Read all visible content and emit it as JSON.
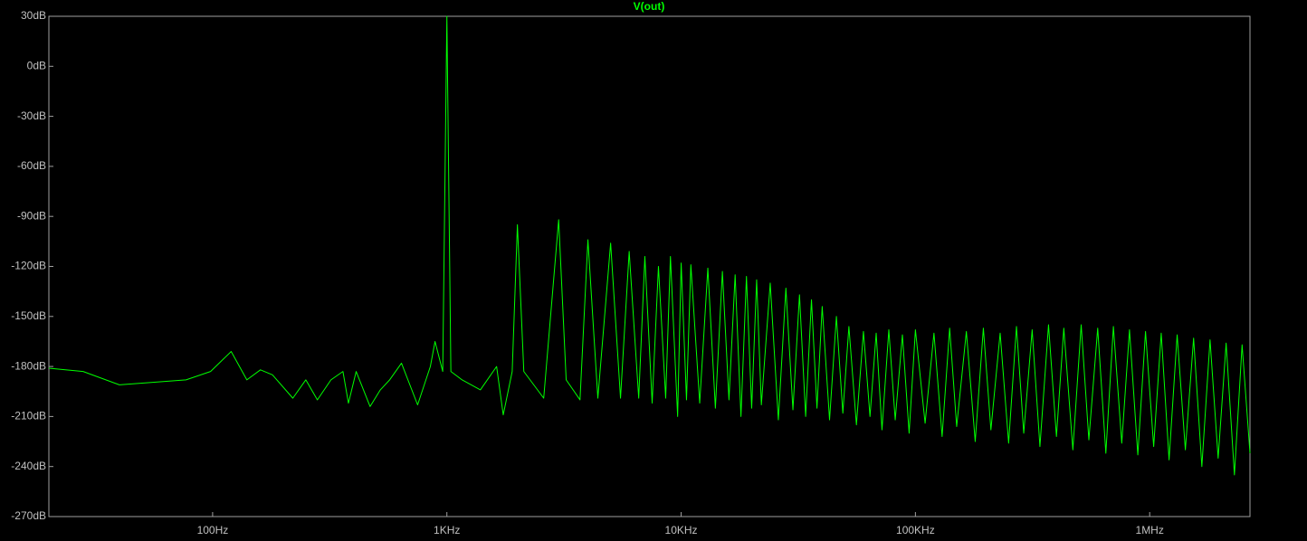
{
  "chart_data": {
    "type": "line",
    "log_x": true,
    "grid": false,
    "xlim": [
      20,
      2680000
    ],
    "ylim": [
      -270,
      30
    ],
    "xticks": [
      {
        "value": 100,
        "label": "100Hz"
      },
      {
        "value": 1000,
        "label": "1KHz"
      },
      {
        "value": 10000,
        "label": "10KHz"
      },
      {
        "value": 100000,
        "label": "100KHz"
      },
      {
        "value": 1000000,
        "label": "1MHz"
      }
    ],
    "yticks": [
      {
        "value": 30,
        "label": "30dB"
      },
      {
        "value": 0,
        "label": "0dB"
      },
      {
        "value": -30,
        "label": "-30dB"
      },
      {
        "value": -60,
        "label": "-60dB"
      },
      {
        "value": -90,
        "label": "-90dB"
      },
      {
        "value": -120,
        "label": "-120dB"
      },
      {
        "value": -150,
        "label": "-150dB"
      },
      {
        "value": -180,
        "label": "-180dB"
      },
      {
        "value": -210,
        "label": "-210dB"
      },
      {
        "value": -240,
        "label": "-240dB"
      },
      {
        "value": -270,
        "label": "-270dB"
      }
    ],
    "x": [
      20,
      28,
      40,
      77,
      98,
      120,
      140,
      160,
      180,
      220,
      250,
      280,
      320,
      360,
      380,
      410,
      470,
      520,
      570,
      640,
      750,
      850,
      890,
      960,
      1000,
      1040,
      1160,
      1390,
      1630,
      1740,
      1900,
      2000,
      2130,
      2590,
      3000,
      3230,
      3700,
      4000,
      4410,
      5000,
      5510,
      6000,
      6590,
      7000,
      7520,
      8000,
      8590,
      9000,
      9660,
      10000,
      10540,
      11000,
      12000,
      13000,
      14000,
      15000,
      16000,
      17000,
      18000,
      19000,
      20000,
      21000,
      22000,
      24000,
      26000,
      28000,
      30000,
      32000,
      34000,
      36000,
      38000,
      40000,
      43000,
      46000,
      49000,
      52000,
      56000,
      60000,
      64000,
      68000,
      72000,
      77000,
      82000,
      88000,
      94000,
      100000,
      110000,
      120000,
      130000,
      140000,
      150000,
      165000,
      180000,
      195000,
      210000,
      230000,
      250000,
      270000,
      290000,
      315000,
      340000,
      370000,
      400000,
      430000,
      470000,
      510000,
      550000,
      600000,
      650000,
      700000,
      760000,
      820000,
      890000,
      960000,
      1040000,
      1120000,
      1210000,
      1310000,
      1420000,
      1540000,
      1670000,
      1810000,
      1960000,
      2120000,
      2300000,
      2480000,
      2680000
    ],
    "series": [
      {
        "name": "V(out)",
        "color": "#00ff00",
        "values": [
          -181,
          -183,
          -191,
          -188,
          -183,
          -171,
          -188,
          -182,
          -185,
          -199,
          -188,
          -200,
          -188,
          -183,
          -202,
          -183,
          -204,
          -194,
          -188,
          -178,
          -203,
          -180,
          -165,
          -183,
          30,
          -183,
          -188,
          -194,
          -180,
          -209,
          -183,
          -95,
          -183,
          -199,
          -92,
          -188,
          -200,
          -104,
          -199,
          -106,
          -199,
          -111,
          -199,
          -114,
          -202,
          -120,
          -199,
          -114,
          -210,
          -118,
          -200,
          -119,
          -202,
          -121,
          -205,
          -123,
          -200,
          -125,
          -210,
          -126,
          -205,
          -128,
          -203,
          -130,
          -212,
          -133,
          -206,
          -137,
          -210,
          -140,
          -205,
          -144,
          -212,
          -150,
          -208,
          -156,
          -215,
          -159,
          -210,
          -160,
          -218,
          -158,
          -212,
          -161,
          -220,
          -158,
          -214,
          -160,
          -222,
          -157,
          -216,
          -159,
          -225,
          -157,
          -218,
          -160,
          -226,
          -156,
          -220,
          -158,
          -228,
          -155,
          -222,
          -157,
          -230,
          -155,
          -224,
          -157,
          -232,
          -156,
          -226,
          -158,
          -233,
          -159,
          -228,
          -160,
          -236,
          -161,
          -230,
          -163,
          -240,
          -164,
          -235,
          -166,
          -245,
          -167,
          -232
        ]
      }
    ]
  }
}
